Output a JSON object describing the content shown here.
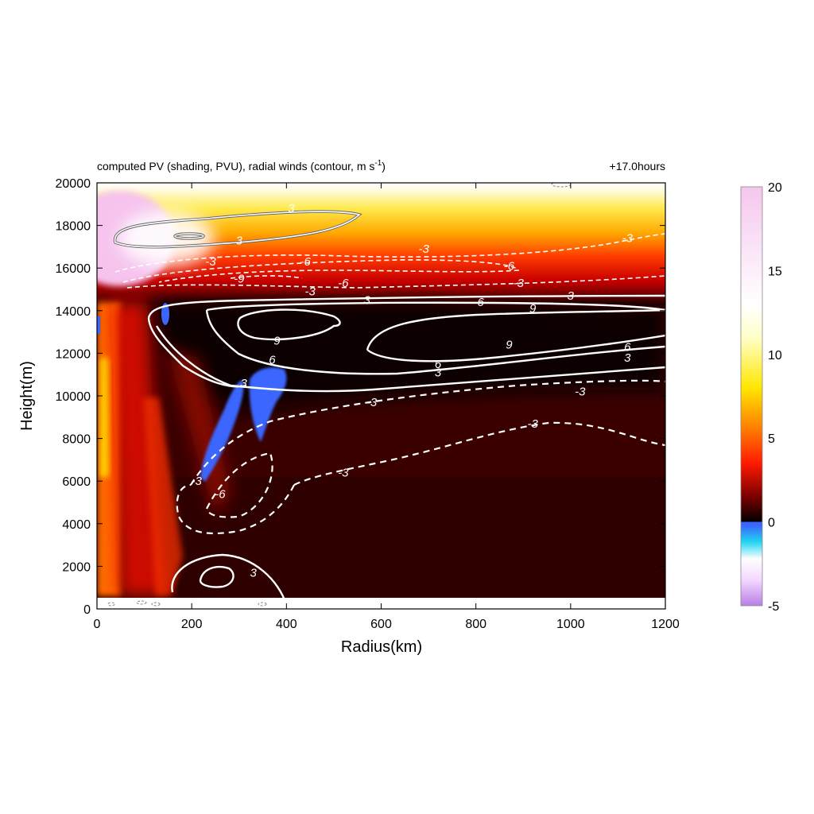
{
  "chart_data": {
    "type": "heatmap",
    "title": "computed PV (shading, PVU), radial winds (contour, m s",
    "title_superscript": "-1",
    "title_suffix": ")",
    "time_label": "+17.0hours",
    "xlabel": "Radius(km)",
    "ylabel": "Height(m)",
    "xlim": [
      0,
      1200
    ],
    "ylim": [
      0,
      20000
    ],
    "x_ticks": [
      0,
      200,
      400,
      600,
      800,
      1000,
      1200
    ],
    "y_ticks": [
      0,
      2000,
      4000,
      6000,
      8000,
      10000,
      12000,
      14000,
      16000,
      18000,
      20000
    ],
    "colorbar": {
      "ticks": [
        -5,
        0,
        5,
        10,
        15,
        20
      ],
      "range": [
        -5,
        20
      ],
      "stops": [
        {
          "value": -5,
          "color": "#b77fe6"
        },
        {
          "value": -3.5,
          "color": "#f3d6ff"
        },
        {
          "value": -2.2,
          "color": "#ffffff"
        },
        {
          "value": -1.2,
          "color": "#22d6f0"
        },
        {
          "value": -0.2,
          "color": "#3a66ff"
        },
        {
          "value": 0,
          "color": "#000000"
        },
        {
          "value": 1.5,
          "color": "#7a0000"
        },
        {
          "value": 3.5,
          "color": "#ff1a00"
        },
        {
          "value": 5.5,
          "color": "#ff7a00"
        },
        {
          "value": 8,
          "color": "#ffe600"
        },
        {
          "value": 11,
          "color": "#ffffc8"
        },
        {
          "value": 13,
          "color": "#ffffff"
        },
        {
          "value": 20,
          "color": "#f5c6ee"
        }
      ]
    },
    "wind_contours": {
      "units": "m s-1",
      "levels": [
        -9,
        -6,
        -3,
        3,
        6,
        9
      ],
      "labels": [
        {
          "text": "3",
          "x": 410,
          "y": 18800
        },
        {
          "text": "3",
          "x": 300,
          "y": 17300
        },
        {
          "text": "-3",
          "x": 240,
          "y": 16300
        },
        {
          "text": "-6",
          "x": 440,
          "y": 16300
        },
        {
          "text": "-3",
          "x": 690,
          "y": 16900
        },
        {
          "text": "-3",
          "x": 1120,
          "y": 17400
        },
        {
          "text": "-9",
          "x": 300,
          "y": 15500
        },
        {
          "text": "-3",
          "x": 450,
          "y": 14900
        },
        {
          "text": "-6",
          "x": 520,
          "y": 15300
        },
        {
          "text": "-6",
          "x": 870,
          "y": 16100
        },
        {
          "text": "-3",
          "x": 890,
          "y": 15300
        },
        {
          "text": "3",
          "x": 570,
          "y": 14500
        },
        {
          "text": "6",
          "x": 810,
          "y": 14400
        },
        {
          "text": "9",
          "x": 920,
          "y": 14100
        },
        {
          "text": "3",
          "x": 1000,
          "y": 14700
        },
        {
          "text": "9",
          "x": 380,
          "y": 12600
        },
        {
          "text": "9",
          "x": 870,
          "y": 12400
        },
        {
          "text": "6",
          "x": 1120,
          "y": 12300
        },
        {
          "text": "3",
          "x": 1120,
          "y": 11800
        },
        {
          "text": "6",
          "x": 370,
          "y": 11700
        },
        {
          "text": "6",
          "x": 720,
          "y": 11500
        },
        {
          "text": "3",
          "x": 720,
          "y": 11100
        },
        {
          "text": "3",
          "x": 310,
          "y": 10600
        },
        {
          "text": "-3",
          "x": 580,
          "y": 9700
        },
        {
          "text": "-3",
          "x": 1020,
          "y": 10200
        },
        {
          "text": "-3",
          "x": 920,
          "y": 8700
        },
        {
          "text": "-3",
          "x": 520,
          "y": 6400
        },
        {
          "text": "-6",
          "x": 260,
          "y": 5400
        },
        {
          "text": "-3",
          "x": 210,
          "y": 6000
        },
        {
          "text": "3",
          "x": 330,
          "y": 1700
        }
      ]
    },
    "grid": false,
    "legend": "colorbar-right"
  }
}
